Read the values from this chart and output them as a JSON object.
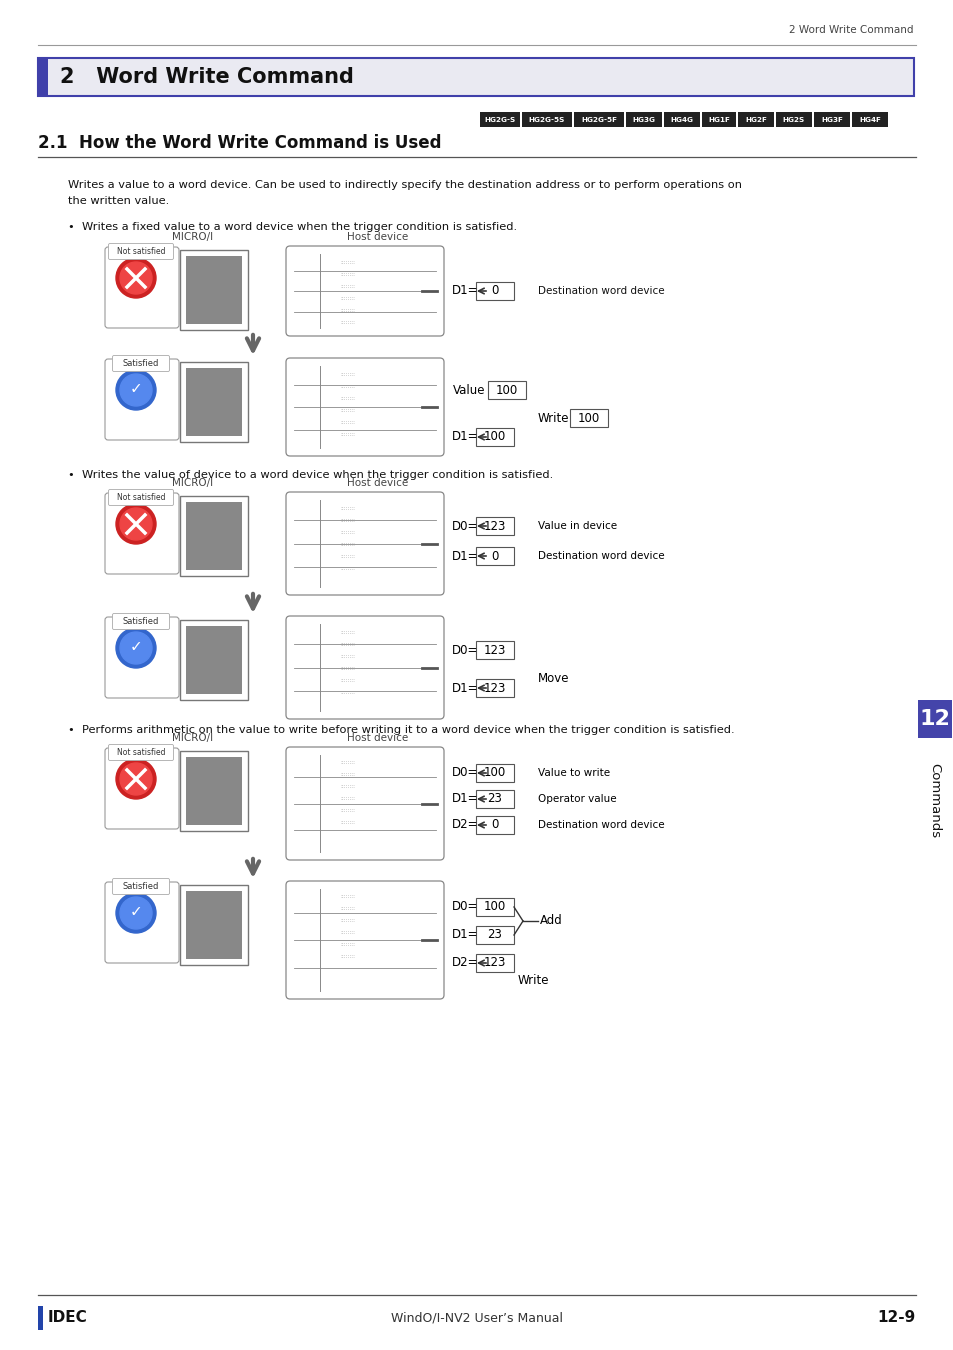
{
  "title_section": "2   Word Write Command",
  "section_title": "2.1  How the Word Write Command is Used",
  "header_right": "2 Word Write Command",
  "chips": [
    "HG2G-S",
    "HG2G-5S",
    "HG2G-5F",
    "HG3G",
    "HG4G",
    "HG1F",
    "HG2F",
    "HG2S",
    "HG3F",
    "HG4F"
  ],
  "body_text1": "Writes a value to a word device. Can be used to indirectly specify the destination address or to perform operations on",
  "body_text2": "the written value.",
  "bullet1": "•  Writes a fixed value to a word device when the trigger condition is satisfied.",
  "bullet2": "•  Writes the value of device to a word device when the trigger condition is satisfied.",
  "bullet3": "•  Performs arithmetic on the value to write before writing it to a word device when the trigger condition is satisfied.",
  "footer_left": "IDEC",
  "footer_center": "WindO/I-NV2 User’s Manual",
  "footer_right": "12-9",
  "tab_label": "Commands",
  "tab_number": "12",
  "bg_color": "#ffffff",
  "header_bg": "#eaeaf2",
  "header_border": "#4040aa",
  "chip_bg": "#222222",
  "chip_text": "#ffffff",
  "tab_bg": "#4444aa"
}
